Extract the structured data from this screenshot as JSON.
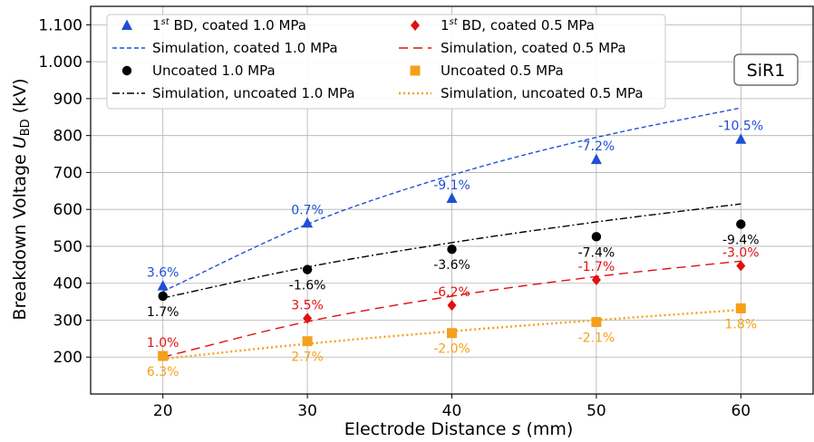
{
  "chart_data": {
    "type": "scatter",
    "xlabel_main": "Electrode Distance ",
    "xlabel_var": "s",
    "xlabel_unit": " (mm)",
    "ylabel_main": "Breakdown Voltage ",
    "ylabel_var": "U",
    "ylabel_sub": "BD",
    "ylabel_unit": " (kV)",
    "xlim": [
      15,
      65
    ],
    "ylim": [
      100,
      1150
    ],
    "xticks": [
      20,
      30,
      40,
      50,
      60
    ],
    "xtick_labels": [
      "20",
      "30",
      "40",
      "50",
      "60"
    ],
    "yticks": [
      200,
      300,
      400,
      500,
      600,
      700,
      800,
      900,
      1000,
      1100
    ],
    "ytick_labels": [
      "200",
      "300",
      "400",
      "500",
      "600",
      "700",
      "800",
      "900",
      "1.000",
      "1.100"
    ],
    "grid": true,
    "legend_position": "top-left",
    "annotation_box": "SiR1",
    "measured": [
      {
        "legend": "BD, coated 1.0 MPa",
        "legend_prefix": "1",
        "legend_sup": "st",
        "marker": "triangle",
        "color": "#1f4fd6",
        "x": [
          20,
          30,
          40,
          50,
          60
        ],
        "y": [
          393,
          563,
          630,
          735,
          790
        ],
        "labels": [
          "3.6%",
          "0.7%",
          "-9.1%",
          "-7.2%",
          "-10.5%"
        ],
        "label_pos": [
          "above",
          "above",
          "above",
          "above",
          "above"
        ]
      },
      {
        "legend": "Uncoated 1.0 MPa",
        "marker": "circle",
        "color": "#000000",
        "x": [
          20,
          30,
          40,
          50,
          60
        ],
        "y": [
          365,
          437,
          492,
          526,
          560
        ],
        "labels": [
          "1.7%",
          "-1.6%",
          "-3.6%",
          "-7.4%",
          "-9.4%"
        ],
        "label_pos": [
          "below",
          "below",
          "below",
          "below",
          "below"
        ]
      },
      {
        "legend": "BD, coated 0.5 MPa",
        "legend_prefix": "1",
        "legend_sup": "st",
        "marker": "diamond",
        "color": "#e01010",
        "x": [
          20,
          30,
          40,
          50,
          60
        ],
        "y": [
          203,
          305,
          340,
          409,
          447
        ],
        "labels": [
          "1.0%",
          "3.5%",
          "-6.2%",
          "-1.7%",
          "-3.0%"
        ],
        "label_pos": [
          "above",
          "above",
          "above",
          "above",
          "above"
        ]
      },
      {
        "legend": "Uncoated 0.5 MPa",
        "marker": "square",
        "color": "#f5a01a",
        "x": [
          20,
          30,
          40,
          50,
          60
        ],
        "y": [
          203,
          243,
          265,
          295,
          332
        ],
        "labels": [
          "6.3%",
          "2.7%",
          "-2.0%",
          "-2.1%",
          "1.8%"
        ],
        "label_pos": [
          "below",
          "below",
          "below",
          "below",
          "below"
        ]
      }
    ],
    "simulations": [
      {
        "legend": "Simulation, coated 1.0 MPa",
        "color": "#1f4fd6",
        "dash": "dashed",
        "x": [
          20,
          30,
          40,
          50,
          60
        ],
        "y": [
          378,
          560,
          693,
          795,
          875
        ]
      },
      {
        "legend": "Simulation, uncoated 1.0 MPa",
        "color": "#000000",
        "dash": "dashdot",
        "x": [
          20,
          30,
          40,
          50,
          60
        ],
        "y": [
          360,
          444,
          510,
          566,
          615
        ]
      },
      {
        "legend": "Simulation, coated 0.5 MPa",
        "color": "#e01010",
        "dash": "loosedash",
        "x": [
          20,
          30,
          40,
          50,
          60
        ],
        "y": [
          200,
          296,
          365,
          418,
          460
        ]
      },
      {
        "legend": "Simulation, uncoated 0.5 MPa",
        "color": "#f5a01a",
        "dash": "dotted",
        "x": [
          20,
          30,
          40,
          50,
          60
        ],
        "y": [
          195,
          236,
          270,
          300,
          328
        ]
      }
    ]
  }
}
